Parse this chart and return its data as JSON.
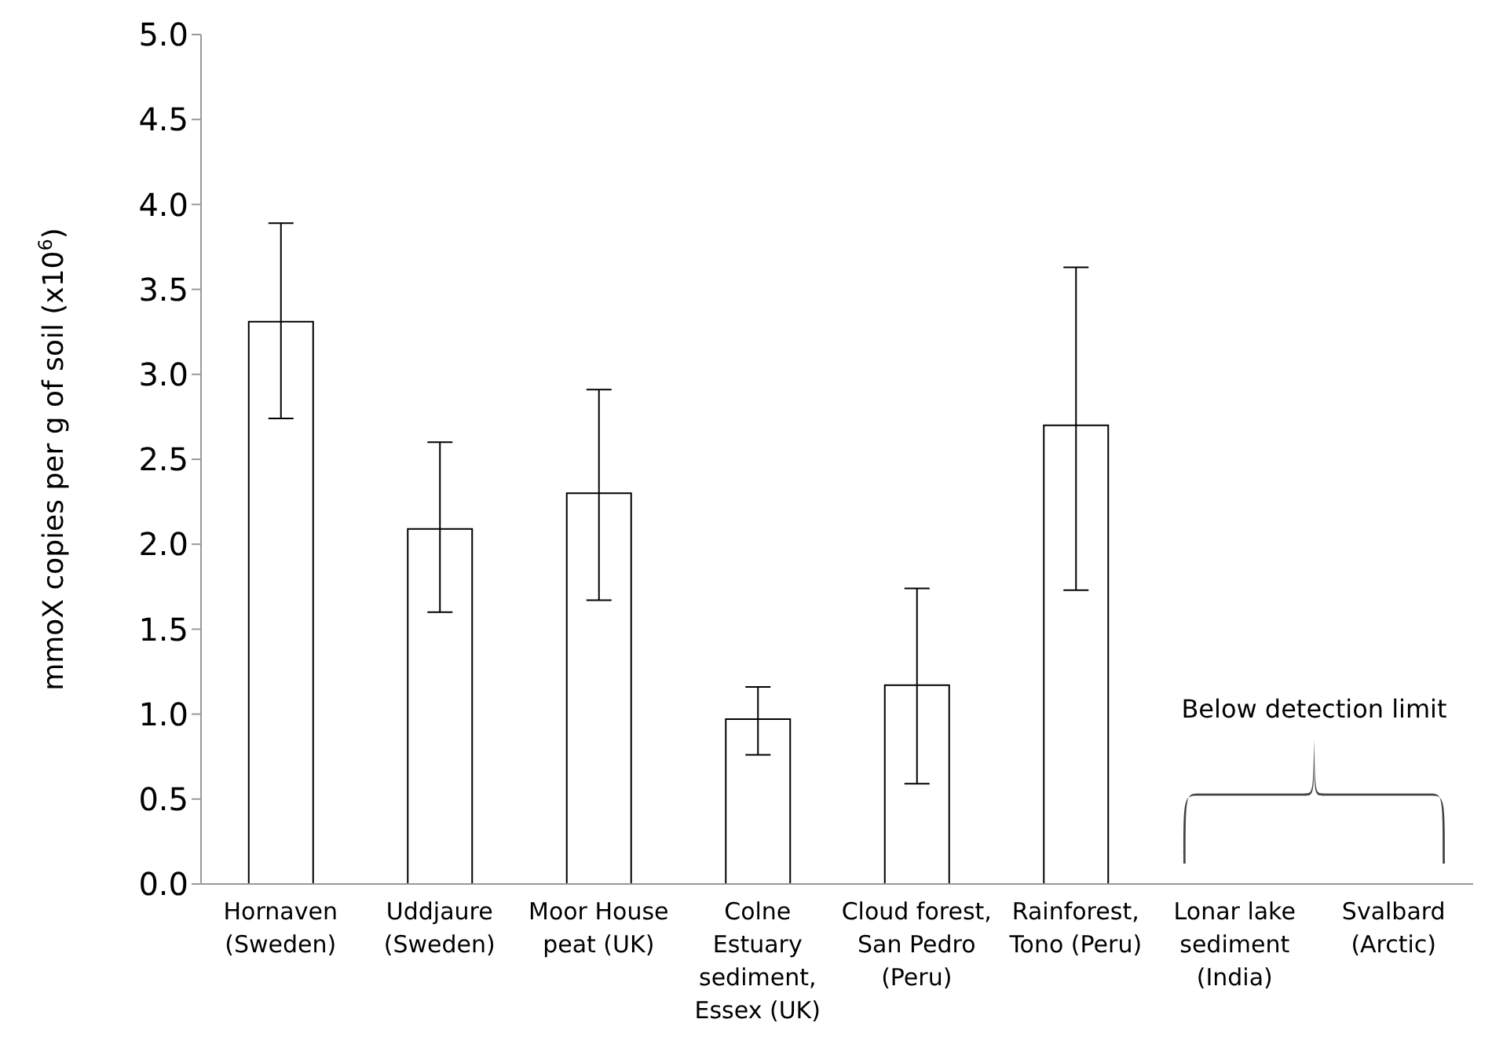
{
  "chart_data": {
    "type": "bar",
    "ylabel": "mmoX copies per g of soil (x10$^{6}$)",
    "categories": [
      "Hornaven (Sweden)",
      "Uddjaure (Sweden)",
      "Moor House peat (UK)",
      "Colne Estuary sediment, Essex (UK)",
      "Cloud forest, San Pedro (Peru)",
      "Rainforest, Tono (Peru)",
      "Lonar lake sediment (India)",
      "Svalbard (Arctic)"
    ],
    "values": [
      3.31,
      2.09,
      2.3,
      0.97,
      1.17,
      2.7,
      null,
      null
    ],
    "errors": [
      [
        2.74,
        3.89
      ],
      [
        1.6,
        2.6
      ],
      [
        1.67,
        2.91
      ],
      [
        0.76,
        1.16
      ],
      [
        0.59,
        1.74
      ],
      [
        1.73,
        3.63
      ],
      null,
      null
    ],
    "color": "#ffffff",
    "ylim": [
      0,
      5
    ],
    "yticks": [
      {
        "value": 0,
        "label": "0.0"
      },
      {
        "value": 0.5,
        "label": "0.5"
      },
      {
        "value": 1,
        "label": "1.0"
      },
      {
        "value": 1.5,
        "label": "1.5"
      },
      {
        "value": 2,
        "label": "2.0"
      },
      {
        "value": 2.5,
        "label": "2.5"
      },
      {
        "value": 3,
        "label": "3.0"
      },
      {
        "value": 3.5,
        "label": "3.5"
      },
      {
        "value": 4,
        "label": "4.0"
      },
      {
        "value": 4.5,
        "label": "4.5"
      },
      {
        "value": 5,
        "label": "5.0"
      }
    ],
    "annotations": [
      "Below detection limit"
    ],
    "grid": false,
    "legend": false
  }
}
